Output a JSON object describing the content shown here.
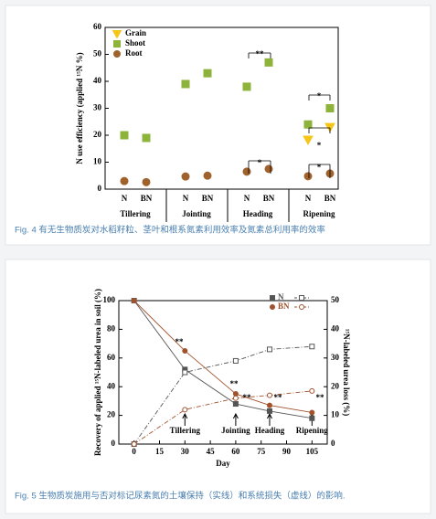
{
  "chart_data": [
    {
      "type": "scatter",
      "caption": "Fig. 4 有无生物质炭对水稻籽粒、茎叶和根系氮素利用效率及氮素总利用率的效率",
      "y_label": "N use efficiency (applied ¹⁵N %)",
      "categories": [
        "N",
        "BN",
        "N",
        "BN",
        "N",
        "BN",
        "N",
        "BN"
      ],
      "groups": [
        "Tillering",
        "Jointing",
        "Heading",
        "Ripening"
      ],
      "ylim": [
        0,
        60
      ],
      "yticks": [
        0,
        10,
        20,
        30,
        40,
        50,
        60
      ],
      "legend": "upper left",
      "series": [
        {
          "name": "Grain",
          "color": "#f5c518",
          "marker": "triangle",
          "values": [
            null,
            null,
            null,
            null,
            null,
            null,
            18.3,
            23
          ]
        },
        {
          "name": "Shoot",
          "color": "#8db33a",
          "marker": "square",
          "values": [
            20,
            19,
            39,
            43,
            38,
            47,
            24,
            30
          ]
        },
        {
          "name": "Root",
          "color": "#a0622d",
          "marker": "circle",
          "values": [
            3,
            2.6,
            4.7,
            5,
            6.5,
            7.5,
            4.8,
            5.8
          ]
        }
      ],
      "annotations": [
        "**",
        "*",
        "*",
        "*",
        "*"
      ]
    },
    {
      "type": "line",
      "caption": "Fig. 5 生物质炭施用与否对标记尿素氮的土壤保持（实线）和系统损失（虚线）的影响.",
      "x_label": "Day",
      "y_label": "Recovery of applied ¹⁵N-labeled urea in soil (%)",
      "y2_label": "¹⁵N-labeled urea loss (%)",
      "x": [
        0,
        30,
        60,
        80,
        105
      ],
      "xlim": [
        -9,
        114
      ],
      "xticks": [
        0,
        15,
        30,
        45,
        60,
        75,
        90,
        105
      ],
      "ylim": [
        0,
        100
      ],
      "yticks": [
        0,
        20,
        40,
        60,
        80,
        100
      ],
      "y2lim": [
        0,
        50
      ],
      "y2ticks": [
        0,
        10,
        20,
        30,
        40,
        50
      ],
      "stages": [
        "Tillering",
        "Jointing",
        "Heading",
        "Ripening"
      ],
      "stage_days": [
        30,
        60,
        80,
        105
      ],
      "series": [
        {
          "name": "N",
          "color": "#555555",
          "marker": "square",
          "values": [
            100,
            52,
            28,
            23,
            18
          ]
        },
        {
          "name": "BN",
          "color": "#a0522d",
          "marker": "circle",
          "values": [
            100,
            65,
            35,
            27,
            22
          ]
        },
        {
          "color": "#555555",
          "marker": "square",
          "dashed": true,
          "open": true,
          "axis": "y2",
          "values": [
            0,
            25,
            29,
            33,
            34
          ]
        },
        {
          "color": "#a0522d",
          "marker": "circle",
          "dashed": true,
          "open": true,
          "axis": "y2",
          "values": [
            0,
            12,
            16,
            17,
            18.5
          ]
        }
      ],
      "annotations": [
        "**",
        "**",
        "**",
        "**",
        "**"
      ]
    }
  ]
}
